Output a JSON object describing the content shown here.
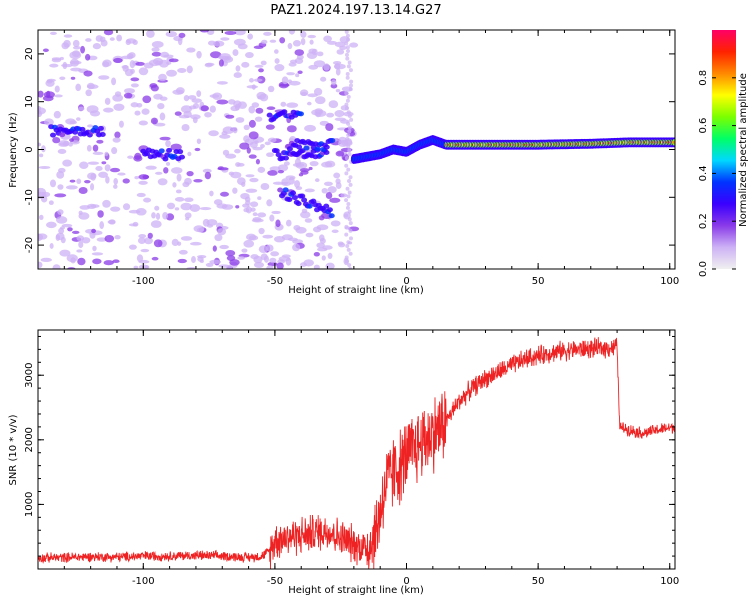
{
  "title": "PAZ1.2024.197.13.14.G27",
  "colors": {
    "snr_line": "#ee2222",
    "colormap": [
      "#f0f0f0",
      "#cdb2f5",
      "#8a3ae8",
      "#3a00ff",
      "#0033ff",
      "#00d8ff",
      "#00ff66",
      "#7cff00",
      "#ffff00",
      "#ff8800",
      "#ff2200",
      "#ff0066"
    ]
  },
  "chart_data": [
    {
      "type": "heatmap",
      "title": "",
      "xlabel": "Height of straight line (km)",
      "ylabel": "Frequency (Hz)",
      "xlim": [
        -140,
        102
      ],
      "ylim": [
        -25,
        25
      ],
      "xticks": [
        -100,
        -50,
        0,
        50,
        100
      ],
      "yticks": [
        -20,
        -10,
        0,
        10,
        20
      ],
      "colorbar": {
        "label": "Normalized spectral amplitude",
        "range": [
          0,
          1
        ],
        "ticks": [
          0.0,
          0.2,
          0.4,
          0.6,
          0.8
        ]
      },
      "features": {
        "noise_region_x": [
          -140,
          -20
        ],
        "noise_bands": [
          {
            "x": [
              -135,
              -115
            ],
            "y": 4
          },
          {
            "x": [
              -100,
              -85
            ],
            "y": -1
          },
          {
            "x": [
              -50,
              -30
            ],
            "y": -1
          },
          {
            "x": [
              -48,
              -28
            ],
            "y": -9
          },
          {
            "x": [
              -52,
              -40
            ],
            "y": 7
          },
          {
            "x": [
              -45,
              -28
            ],
            "y": 1
          }
        ],
        "ridge": [
          {
            "x": -20,
            "y": -2
          },
          {
            "x": -15,
            "y": -1.5
          },
          {
            "x": -10,
            "y": -1
          },
          {
            "x": -5,
            "y": 0
          },
          {
            "x": 0,
            "y": -0.5
          },
          {
            "x": 5,
            "y": 1
          },
          {
            "x": 10,
            "y": 2
          },
          {
            "x": 15,
            "y": 1
          },
          {
            "x": 30,
            "y": 1
          },
          {
            "x": 50,
            "y": 1
          },
          {
            "x": 70,
            "y": 1.2
          },
          {
            "x": 85,
            "y": 1.5
          },
          {
            "x": 102,
            "y": 1.5
          }
        ]
      }
    },
    {
      "type": "line",
      "title": "",
      "xlabel": "Height of straight line (km)",
      "ylabel": "SNR (10 * v/v)",
      "xlim": [
        -140,
        102
      ],
      "ylim": [
        0,
        3700
      ],
      "xticks": [
        -100,
        -50,
        0,
        50,
        100
      ],
      "yticks": [
        1000,
        2000,
        3000
      ],
      "series": [
        {
          "x": [
            -140,
            -130,
            -120,
            -110,
            -100,
            -90,
            -80,
            -70,
            -60,
            -55,
            -52,
            -50,
            -45,
            -40,
            -35,
            -30,
            -25,
            -20,
            -15,
            -12,
            -10,
            -8,
            -5,
            -2,
            0,
            3,
            5,
            8,
            10,
            13,
            16,
            20,
            25,
            30,
            35,
            40,
            45,
            50,
            55,
            60,
            65,
            70,
            75,
            78,
            80,
            81,
            85,
            90,
            95,
            102
          ],
          "values": [
            170,
            180,
            190,
            185,
            200,
            200,
            210,
            200,
            180,
            200,
            280,
            450,
            500,
            520,
            560,
            600,
            480,
            380,
            330,
            500,
            900,
            1300,
            1500,
            1600,
            1750,
            1850,
            1950,
            2050,
            2100,
            2200,
            2350,
            2600,
            2800,
            2950,
            3050,
            3150,
            3250,
            3300,
            3350,
            3380,
            3400,
            3410,
            3420,
            3430,
            3440,
            2200,
            2150,
            2100,
            2150,
            2200
          ]
        }
      ]
    }
  ]
}
